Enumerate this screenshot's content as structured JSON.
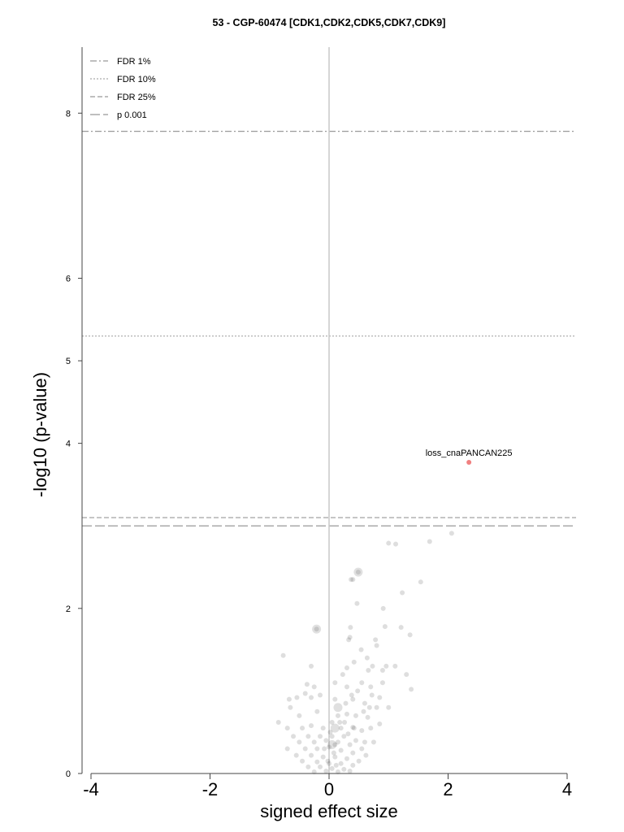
{
  "chart_data": {
    "type": "scatter",
    "title": "53 - CGP-60474 [CDK1,CDK2,CDK5,CDK7,CDK9]",
    "xlabel": "signed effect size",
    "ylabel": "-log10 (p-value)",
    "xlim": [
      -4.15,
      4.15
    ],
    "ylim": [
      0,
      8.8
    ],
    "x_ticks": [
      "-4",
      "-2",
      "0",
      "2",
      "4"
    ],
    "y_ticks": [
      "0",
      "2",
      "4",
      "5",
      "6",
      "8"
    ],
    "grid": false,
    "legend_position": "top-left",
    "thresholds": [
      {
        "label": "FDR 1%",
        "y": 7.78,
        "style": "dashdot"
      },
      {
        "label": "FDR 10%",
        "y": 5.3,
        "style": "dotted"
      },
      {
        "label": "FDR 25%",
        "y": 3.1,
        "style": "dashed"
      },
      {
        "label": "p 0.001",
        "y": 3.0,
        "style": "longdash"
      }
    ],
    "highlight": {
      "label": "loss_cnaPANCAN225",
      "x": 2.35,
      "y": 3.77,
      "color": "#f08080"
    },
    "points": [
      [
        2.06,
        2.91
      ],
      [
        1.69,
        2.81
      ],
      [
        1.0,
        2.79
      ],
      [
        1.12,
        2.78
      ],
      [
        1.54,
        2.32
      ],
      [
        1.23,
        2.19
      ],
      [
        0.4,
        2.35
      ],
      [
        0.37,
        2.35
      ],
      [
        0.49,
        2.44
      ],
      [
        0.47,
        2.06
      ],
      [
        0.91,
        2.0
      ],
      [
        0.36,
        1.77
      ],
      [
        1.21,
        1.77
      ],
      [
        0.94,
        1.78
      ],
      [
        1.36,
        1.68
      ],
      [
        -0.21,
        1.75
      ],
      [
        -0.77,
        1.43
      ],
      [
        0.35,
        1.65
      ],
      [
        0.33,
        1.62
      ],
      [
        0.78,
        1.62
      ],
      [
        0.8,
        1.55
      ],
      [
        0.54,
        1.5
      ],
      [
        0.42,
        1.35
      ],
      [
        0.64,
        1.4
      ],
      [
        0.73,
        1.3
      ],
      [
        0.96,
        1.3
      ],
      [
        0.66,
        1.25
      ],
      [
        0.9,
        1.25
      ],
      [
        1.11,
        1.3
      ],
      [
        1.3,
        1.2
      ],
      [
        0.3,
        1.28
      ],
      [
        -0.3,
        1.3
      ],
      [
        0.23,
        1.2
      ],
      [
        0.1,
        1.1
      ],
      [
        0.55,
        1.1
      ],
      [
        0.9,
        1.1
      ],
      [
        1.38,
        1.02
      ],
      [
        -0.37,
        1.08
      ],
      [
        -0.25,
        1.05
      ],
      [
        0.3,
        1.05
      ],
      [
        0.7,
        1.05
      ],
      [
        0.72,
        0.95
      ],
      [
        0.85,
        0.92
      ],
      [
        -0.4,
        0.97
      ],
      [
        -0.15,
        0.95
      ],
      [
        -0.54,
        0.92
      ],
      [
        -0.67,
        0.9
      ],
      [
        -0.3,
        0.92
      ],
      [
        0.1,
        0.9
      ],
      [
        0.4,
        0.9
      ],
      [
        0.6,
        0.85
      ],
      [
        0.8,
        0.8
      ],
      [
        1.0,
        0.8
      ],
      [
        0.05,
        0.62
      ],
      [
        -0.65,
        0.8
      ],
      [
        -0.5,
        0.7
      ],
      [
        -0.2,
        0.75
      ],
      [
        0.15,
        0.7
      ],
      [
        0.3,
        0.72
      ],
      [
        0.45,
        0.7
      ],
      [
        0.65,
        0.68
      ],
      [
        0.85,
        0.6
      ],
      [
        0.7,
        0.55
      ],
      [
        0.55,
        0.52
      ],
      [
        -0.85,
        0.62
      ],
      [
        -0.7,
        0.55
      ],
      [
        -0.45,
        0.55
      ],
      [
        -0.3,
        0.58
      ],
      [
        -0.1,
        0.55
      ],
      [
        0.2,
        0.55
      ],
      [
        0.4,
        0.56
      ],
      [
        -0.6,
        0.45
      ],
      [
        -0.35,
        0.45
      ],
      [
        -0.15,
        0.45
      ],
      [
        0.05,
        0.45
      ],
      [
        0.25,
        0.45
      ],
      [
        0.45,
        0.4
      ],
      [
        0.6,
        0.38
      ],
      [
        -0.5,
        0.38
      ],
      [
        -0.25,
        0.38
      ],
      [
        0.15,
        0.38
      ],
      [
        0.35,
        0.35
      ],
      [
        0.55,
        0.3
      ],
      [
        0.75,
        0.38
      ],
      [
        -0.7,
        0.3
      ],
      [
        -0.4,
        0.3
      ],
      [
        -0.2,
        0.3
      ],
      [
        0.0,
        0.32
      ],
      [
        0.2,
        0.28
      ],
      [
        0.4,
        0.25
      ],
      [
        0.62,
        0.22
      ],
      [
        -0.55,
        0.22
      ],
      [
        -0.3,
        0.22
      ],
      [
        -0.1,
        0.2
      ],
      [
        0.1,
        0.2
      ],
      [
        0.3,
        0.18
      ],
      [
        0.5,
        0.15
      ],
      [
        -0.45,
        0.15
      ],
      [
        -0.2,
        0.14
      ],
      [
        0.0,
        0.12
      ],
      [
        0.2,
        0.12
      ],
      [
        0.4,
        0.1
      ],
      [
        -0.35,
        0.08
      ],
      [
        -0.15,
        0.08
      ],
      [
        0.05,
        0.06
      ],
      [
        0.25,
        0.05
      ],
      [
        -0.05,
        0.03
      ],
      [
        0.15,
        0.02
      ],
      [
        -0.25,
        0.02
      ],
      [
        0.35,
        0.03
      ],
      [
        0.1,
        0.35
      ],
      [
        -0.05,
        0.4
      ],
      [
        0.08,
        0.25
      ],
      [
        -0.02,
        0.15
      ],
      [
        0.12,
        0.1
      ],
      [
        0.02,
        0.5
      ],
      [
        -0.08,
        0.3
      ],
      [
        0.18,
        0.62
      ],
      [
        0.28,
        0.85
      ],
      [
        0.38,
        0.95
      ],
      [
        0.48,
        1.0
      ],
      [
        0.58,
        0.75
      ],
      [
        0.68,
        0.8
      ],
      [
        0.26,
        0.62
      ],
      [
        0.32,
        0.48
      ],
      [
        0.42,
        0.55
      ]
    ],
    "big_points": [
      [
        -0.21,
        1.75
      ],
      [
        0.49,
        2.44
      ],
      [
        0.1,
        0.55
      ],
      [
        0.05,
        0.35
      ],
      [
        0.15,
        0.8
      ]
    ]
  }
}
